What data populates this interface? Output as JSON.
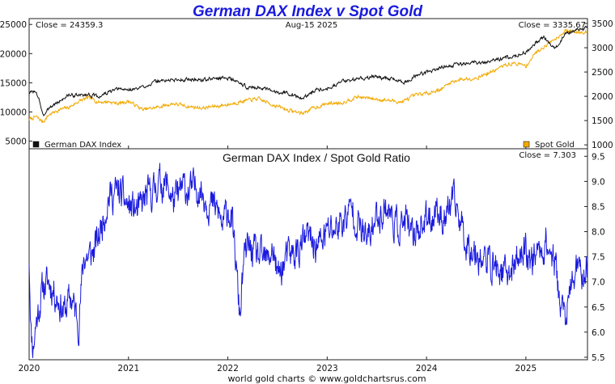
{
  "title": "German DAX Index v Spot Gold",
  "footer": "world gold charts © www.goldchartsrus.com",
  "colors": {
    "dax": "#111111",
    "gold": "#f2a900",
    "ratio": "#1a1adf",
    "title": "#1a1adf"
  },
  "chart_data": [
    {
      "type": "line",
      "panel": "top",
      "annotations": {
        "left_close": "Close = 24359.3",
        "date": "Aug-15  2025",
        "right_close": "Close = 3335.67"
      },
      "left_axis": {
        "ticks": [
          5000,
          10000,
          15000,
          20000,
          25000
        ],
        "tick_labels": [
          "5000",
          "10000",
          "15000",
          "20000",
          "25000"
        ],
        "range": [
          3700,
          26000
        ]
      },
      "right_axis": {
        "ticks": [
          1000,
          1500,
          2000,
          2500,
          3000,
          3500
        ],
        "tick_labels": [
          "1000",
          "1500",
          "2000",
          "2500",
          "3000",
          "3500"
        ],
        "range": [
          920,
          3600
        ]
      },
      "x_axis": {
        "ticks": [
          2020,
          2021,
          2022,
          2023,
          2024,
          2025
        ],
        "range": [
          2020.0,
          2025.62
        ]
      },
      "legend": {
        "placement": "bottom",
        "left_label": "German DAX Index",
        "right_label": "Spot Gold"
      },
      "series": [
        {
          "name": "German DAX Index",
          "axis": "left",
          "x": [
            2020.0,
            2020.05,
            2020.1,
            2020.14,
            2020.18,
            2020.22,
            2020.3,
            2020.4,
            2020.5,
            2020.6,
            2020.7,
            2020.8,
            2020.9,
            2021.0,
            2021.1,
            2021.2,
            2021.3,
            2021.45,
            2021.6,
            2021.75,
            2021.9,
            2022.0,
            2022.1,
            2022.2,
            2022.3,
            2022.45,
            2022.6,
            2022.75,
            2022.8,
            2022.9,
            2023.0,
            2023.15,
            2023.3,
            2023.45,
            2023.6,
            2023.8,
            2023.9,
            2024.0,
            2024.2,
            2024.4,
            2024.6,
            2024.8,
            2025.0,
            2025.1,
            2025.18,
            2025.25,
            2025.3,
            2025.4,
            2025.5,
            2025.62
          ],
          "values": [
            13200,
            13600,
            12400,
            9100,
            10500,
            10900,
            11800,
            12900,
            12800,
            13000,
            12600,
            13400,
            13900,
            13800,
            14000,
            14700,
            15300,
            15500,
            15600,
            15500,
            15800,
            15900,
            15100,
            14200,
            14300,
            13500,
            13300,
            12200,
            12900,
            13900,
            14100,
            15200,
            15700,
            16000,
            15800,
            15100,
            16300,
            16800,
            17900,
            18300,
            18600,
            19300,
            20200,
            21800,
            22800,
            21500,
            20800,
            23500,
            24100,
            24359.3
          ]
        },
        {
          "name": "Spot Gold",
          "axis": "right",
          "x": [
            2020.0,
            2020.07,
            2020.14,
            2020.2,
            2020.3,
            2020.4,
            2020.5,
            2020.6,
            2020.7,
            2020.8,
            2020.9,
            2021.0,
            2021.15,
            2021.3,
            2021.45,
            2021.6,
            2021.75,
            2021.9,
            2022.0,
            2022.15,
            2022.3,
            2022.45,
            2022.6,
            2022.75,
            2022.85,
            2023.0,
            2023.15,
            2023.3,
            2023.45,
            2023.6,
            2023.75,
            2023.9,
            2024.0,
            2024.15,
            2024.25,
            2024.35,
            2024.5,
            2024.65,
            2024.8,
            2024.9,
            2025.0,
            2025.1,
            2025.2,
            2025.3,
            2025.4,
            2025.5,
            2025.62
          ],
          "values": [
            1520,
            1580,
            1470,
            1620,
            1720,
            1770,
            1900,
            1970,
            1880,
            1890,
            1850,
            1900,
            1720,
            1780,
            1850,
            1790,
            1760,
            1800,
            1830,
            1900,
            1950,
            1830,
            1720,
            1650,
            1750,
            1850,
            1870,
            1990,
            1950,
            1920,
            1880,
            2030,
            2060,
            2150,
            2300,
            2350,
            2380,
            2500,
            2650,
            2680,
            2620,
            2900,
            3050,
            3200,
            3350,
            3320,
            3335.67
          ]
        }
      ]
    },
    {
      "type": "line",
      "panel": "bottom",
      "title": "German DAX Index  /  Spot Gold Ratio",
      "annotations": {
        "right_close": "Close = 7.303"
      },
      "y_axis": {
        "ticks": [
          5.5,
          6.0,
          6.5,
          7.0,
          7.5,
          8.0,
          8.5,
          9.0,
          9.5
        ],
        "tick_labels": [
          "5.5",
          "6.0",
          "6.5",
          "7.0",
          "7.5",
          "8.0",
          "8.5",
          "9.0",
          "9.5"
        ],
        "range": [
          5.45,
          9.65
        ]
      },
      "x_axis": {
        "ticks": [
          2020,
          2021,
          2022,
          2023,
          2024,
          2025
        ],
        "tick_labels": [
          "2020",
          "2021",
          "2022",
          "2023",
          "2024",
          "2025"
        ],
        "range": [
          2020.0,
          2025.62
        ]
      },
      "series": [
        {
          "name": "German DAX Index  /  Spot Gold Ratio",
          "x": [
            2020.0,
            2020.02,
            2020.04,
            2020.07,
            2020.1,
            2020.14,
            2020.2,
            2020.28,
            2020.35,
            2020.42,
            2020.5,
            2020.55,
            2020.6,
            2020.65,
            2020.7,
            2020.75,
            2020.8,
            2020.9,
            2021.0,
            2021.1,
            2021.18,
            2021.25,
            2021.3,
            2021.4,
            2021.45,
            2021.5,
            2021.55,
            2021.6,
            2021.7,
            2021.8,
            2021.9,
            2021.95,
            2022.0,
            2022.04,
            2022.08,
            2022.12,
            2022.16,
            2022.2,
            2022.3,
            2022.4,
            2022.45,
            2022.5,
            2022.6,
            2022.7,
            2022.8,
            2022.9,
            2023.0,
            2023.1,
            2023.2,
            2023.25,
            2023.3,
            2023.4,
            2023.5,
            2023.6,
            2023.7,
            2023.8,
            2023.85,
            2023.9,
            2024.0,
            2024.05,
            2024.1,
            2024.15,
            2024.2,
            2024.25,
            2024.3,
            2024.4,
            2024.5,
            2024.6,
            2024.7,
            2024.8,
            2024.9,
            2025.0,
            2025.05,
            2025.1,
            2025.15,
            2025.2,
            2025.25,
            2025.3,
            2025.35,
            2025.4,
            2025.5,
            2025.55,
            2025.62
          ],
          "values": [
            7.5,
            6.0,
            5.7,
            6.2,
            6.5,
            6.9,
            7.0,
            6.7,
            6.4,
            6.7,
            6.2,
            7.5,
            7.5,
            7.6,
            7.9,
            8.3,
            8.7,
            8.8,
            8.5,
            8.4,
            8.7,
            8.8,
            9.0,
            8.9,
            8.6,
            8.7,
            8.9,
            8.8,
            8.9,
            8.6,
            8.4,
            8.1,
            8.5,
            8.2,
            7.4,
            6.3,
            7.4,
            7.7,
            7.5,
            7.4,
            7.7,
            7.1,
            7.5,
            7.6,
            7.9,
            7.7,
            8.0,
            8.1,
            8.3,
            8.5,
            8.2,
            7.8,
            8.3,
            8.5,
            8.1,
            8.2,
            7.8,
            8.1,
            8.2,
            8.3,
            8.5,
            8.3,
            8.3,
            8.6,
            8.5,
            7.8,
            7.6,
            7.4,
            7.3,
            7.1,
            7.4,
            7.7,
            7.4,
            7.6,
            7.6,
            7.8,
            7.6,
            7.3,
            6.5,
            6.3,
            7.3,
            7.1,
            7.303
          ]
        }
      ]
    }
  ]
}
